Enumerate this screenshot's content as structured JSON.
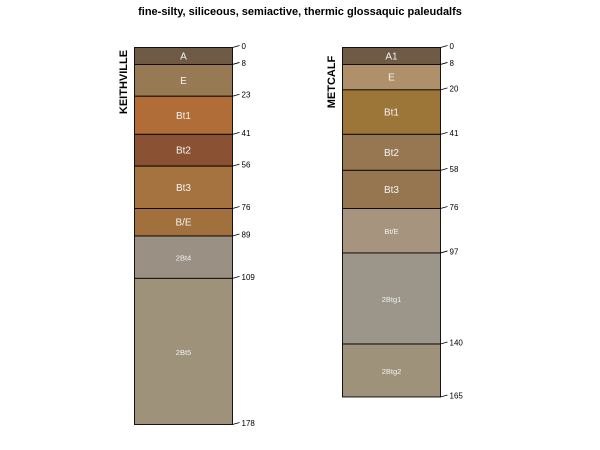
{
  "title": "fine-silty, siliceous, semiactive, thermic glossaquic paleudalfs",
  "profiles": [
    {
      "name": "KEITHVILLE",
      "horizons": [
        {
          "name": "A",
          "top": 0,
          "bottom": 8,
          "color": "#6e5a45"
        },
        {
          "name": "E",
          "top": 8,
          "bottom": 23,
          "color": "#977a54"
        },
        {
          "name": "Bt1",
          "top": 23,
          "bottom": 41,
          "color": "#b06d38"
        },
        {
          "name": "Bt2",
          "top": 41,
          "bottom": 56,
          "color": "#8a5233"
        },
        {
          "name": "Bt3",
          "top": 56,
          "bottom": 76,
          "color": "#a4733f"
        },
        {
          "name": "B/E",
          "top": 76,
          "bottom": 89,
          "color": "#a2703c"
        },
        {
          "name": "2Bt4",
          "top": 89,
          "bottom": 109,
          "color": "#9a9084"
        },
        {
          "name": "2Bt5",
          "top": 109,
          "bottom": 178,
          "color": "#9e927a"
        }
      ],
      "depths": [
        0,
        8,
        23,
        41,
        56,
        76,
        89,
        109,
        178
      ]
    },
    {
      "name": "METCALF",
      "horizons": [
        {
          "name": "A1",
          "top": 0,
          "bottom": 8,
          "color": "#6e5a45"
        },
        {
          "name": "E",
          "top": 8,
          "bottom": 20,
          "color": "#b0906a"
        },
        {
          "name": "Bt1",
          "top": 20,
          "bottom": 41,
          "color": "#9c7538"
        },
        {
          "name": "Bt2",
          "top": 41,
          "bottom": 58,
          "color": "#967752"
        },
        {
          "name": "Bt3",
          "top": 58,
          "bottom": 76,
          "color": "#957650"
        },
        {
          "name": "Bt/E",
          "top": 76,
          "bottom": 97,
          "color": "#a6947e"
        },
        {
          "name": "2Btg1",
          "top": 97,
          "bottom": 140,
          "color": "#9b958a"
        },
        {
          "name": "2Btg2",
          "top": 140,
          "bottom": 165,
          "color": "#9e927a"
        }
      ],
      "depths": [
        0,
        8,
        20,
        41,
        58,
        76,
        97,
        140,
        165
      ]
    }
  ]
}
